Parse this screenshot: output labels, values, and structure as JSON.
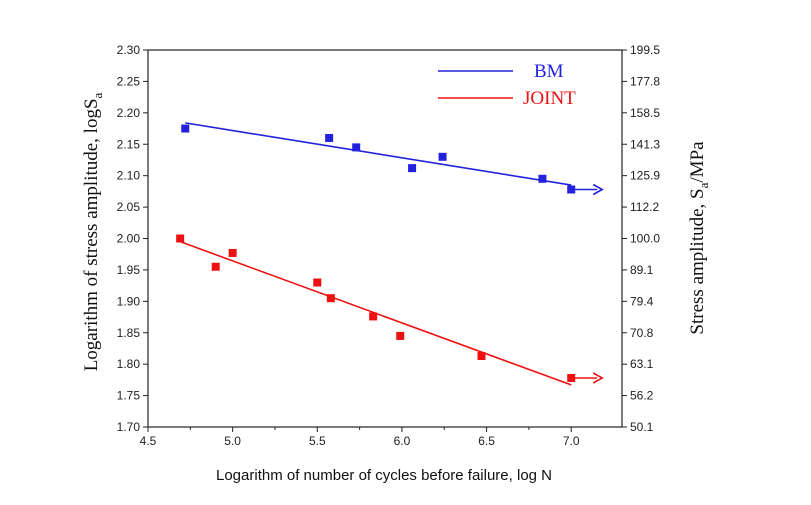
{
  "chart_data": {
    "type": "scatter",
    "xlabel": "Logarithm of number of cycles before failure, log N",
    "ylabel_left": "Logarithm of stress amplitude, logS",
    "ylabel_left_sub": "a",
    "ylabel_right": "Stress amplitude, S",
    "ylabel_right_sub": "a",
    "ylabel_right_tail": "/MPa",
    "xlim": [
      4.5,
      7.3
    ],
    "ylim": [
      1.7,
      2.3
    ],
    "x_ticks": [
      "4.5",
      "5.0",
      "5.5",
      "6.0",
      "6.5",
      "7.0"
    ],
    "y_ticks_left": [
      "1.70",
      "1.75",
      "1.80",
      "1.85",
      "1.90",
      "1.95",
      "2.00",
      "2.05",
      "2.10",
      "2.15",
      "2.20",
      "2.25",
      "2.30"
    ],
    "y_ticks_right": [
      "50.1",
      "56.2",
      "63.1",
      "70.8",
      "79.4",
      "89.1",
      "100.0",
      "112.2",
      "125.9",
      "141.3",
      "158.5",
      "177.8",
      "199.5"
    ],
    "legend_position": "top-right",
    "series": [
      {
        "name": "BM",
        "color": "#2222dd",
        "points": [
          [
            4.72,
            2.175
          ],
          [
            5.57,
            2.16
          ],
          [
            5.73,
            2.145
          ],
          [
            6.06,
            2.112
          ],
          [
            6.24,
            2.13
          ],
          [
            6.83,
            2.095
          ],
          [
            7.0,
            2.078
          ]
        ],
        "fit": [
          [
            4.72,
            2.184
          ],
          [
            7.0,
            2.085
          ]
        ],
        "runout": [
          7.0,
          2.078
        ]
      },
      {
        "name": "JOINT",
        "color": "#ee1111",
        "points": [
          [
            4.69,
            2.0
          ],
          [
            4.9,
            1.955
          ],
          [
            5.0,
            1.977
          ],
          [
            5.5,
            1.93
          ],
          [
            5.58,
            1.905
          ],
          [
            5.83,
            1.876
          ],
          [
            5.99,
            1.845
          ],
          [
            6.47,
            1.813
          ],
          [
            7.0,
            1.778
          ]
        ],
        "fit": [
          [
            4.69,
            1.995
          ],
          [
            7.0,
            1.767
          ]
        ],
        "runout": [
          7.0,
          1.778
        ]
      }
    ]
  }
}
